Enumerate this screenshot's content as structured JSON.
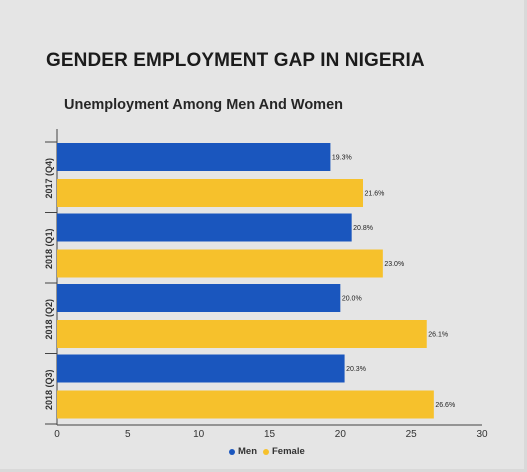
{
  "title": "GENDER EMPLOYMENT GAP IN NIGERIA",
  "subtitle": "Unemployment Among Men And Women",
  "colors": {
    "men": "#1a56be",
    "female": "#f6c12c",
    "background": "#e5e5e5"
  },
  "legend": {
    "men": "Men",
    "female": "Female"
  },
  "chart_data": {
    "type": "bar",
    "orientation": "horizontal",
    "title": "Unemployment Among Men And Women",
    "categories": [
      "2017 (Q4)",
      "2018 (Q1)",
      "2018 (Q2)",
      "2018 (Q3)"
    ],
    "series": [
      {
        "name": "Men",
        "values": [
          19.3,
          20.8,
          20.0,
          20.3
        ],
        "labels": [
          "19.3%",
          "20.8%",
          "20.0%",
          "20.3%"
        ]
      },
      {
        "name": "Female",
        "values": [
          21.6,
          23.0,
          26.1,
          26.6
        ],
        "labels": [
          "21.6%",
          "23.0%",
          "26.1%",
          "26.6%"
        ]
      }
    ],
    "xlim": [
      0,
      30
    ],
    "xticks": [
      "0",
      "5",
      "10",
      "15",
      "20",
      "25",
      "30"
    ],
    "grid": false,
    "legend_position": "bottom"
  }
}
